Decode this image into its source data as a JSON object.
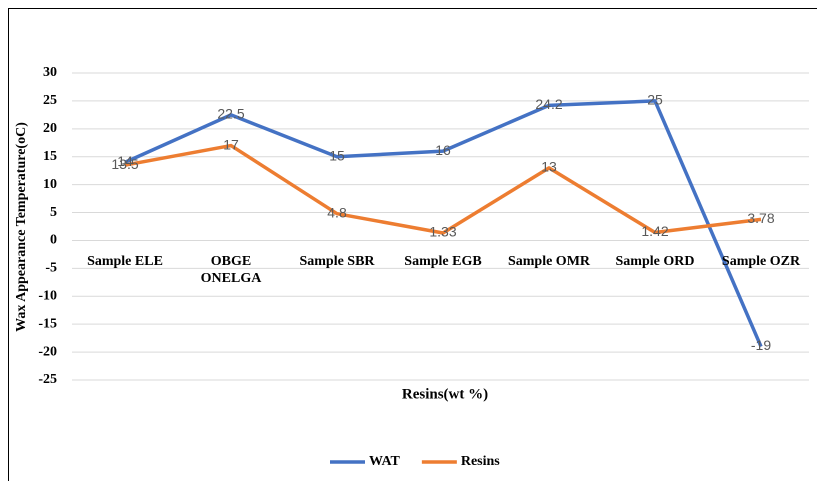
{
  "chart_data": {
    "type": "line",
    "y_label": "Wax Appearance Temperature(oC)",
    "x_label": "Resins(wt %)",
    "categories": [
      "Sample ELE",
      "OBGE ONELGA",
      "Sample SBR",
      "Sample EGB",
      "Sample OMR",
      "Sample ORD",
      "Sample OZR"
    ],
    "series": [
      {
        "name": "WAT",
        "color": "#4472c4",
        "values": [
          14,
          22.5,
          15,
          16,
          24.2,
          25,
          -19
        ]
      },
      {
        "name": "Resins",
        "color": "#ed7d31",
        "values": [
          13.5,
          17,
          4.8,
          1.33,
          13,
          1.42,
          3.78
        ]
      }
    ],
    "ylim": [
      -25,
      30
    ],
    "yticks": [
      -25,
      -20,
      -15,
      -10,
      -5,
      0,
      5,
      10,
      15,
      20,
      25,
      30
    ],
    "grid": true,
    "legend": "bottom"
  }
}
